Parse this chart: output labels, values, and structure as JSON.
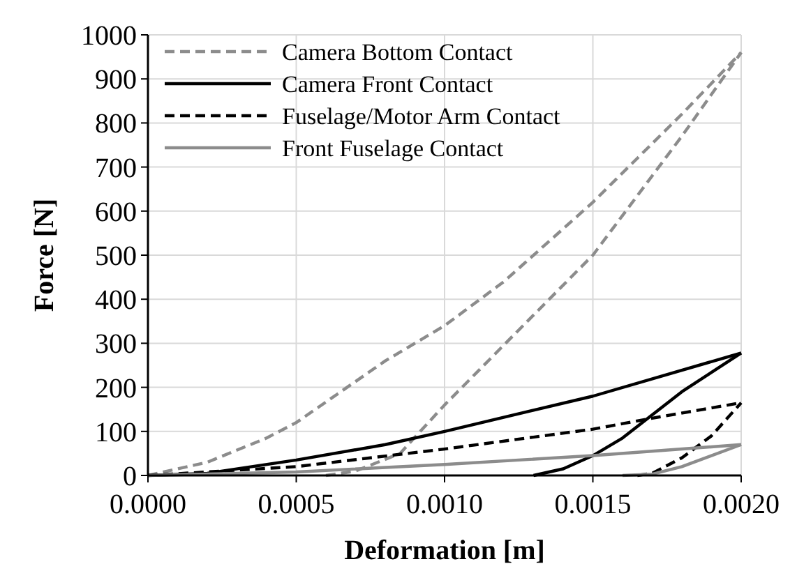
{
  "chart_data": {
    "type": "line",
    "xlabel": "Deformation [m]",
    "ylabel": "Force [N]",
    "xlim": [
      0,
      0.002
    ],
    "xticks": [
      {
        "value": 0,
        "label": "0.0000"
      },
      {
        "value": 0.0005,
        "label": "0.0005"
      },
      {
        "value": 0.001,
        "label": "0.0010"
      },
      {
        "value": 0.0015,
        "label": "0.0015"
      },
      {
        "value": 0.002,
        "label": "0.0020"
      }
    ],
    "ylim": [
      0,
      1000
    ],
    "yticks": [
      0,
      100,
      200,
      300,
      400,
      500,
      600,
      700,
      800,
      900,
      1000
    ],
    "grid": true,
    "legend": "top left",
    "marker": "none",
    "series": [
      {
        "name": "Camera Bottom Contact",
        "color": "#8c8c8c",
        "line_style": "dashed",
        "x": [
          0,
          0.0002,
          0.0004,
          0.0005,
          0.0008,
          0.001,
          0.0012,
          0.0015,
          0.0018,
          0.002
        ],
        "values": [
          0,
          30,
          85,
          120,
          260,
          340,
          440,
          620,
          820,
          960
        ]
      },
      {
        "color": "#8c8c8c",
        "line_style": "dashed",
        "x": [
          0.0006,
          0.0007,
          0.00085,
          0.001,
          0.00125,
          0.0015,
          0.0018,
          0.002
        ],
        "values": [
          0,
          10,
          50,
          160,
          330,
          500,
          770,
          960
        ]
      },
      {
        "name": "Camera Front Contact",
        "color": "#000000",
        "line_style": "solid",
        "x": [
          0,
          0.0002,
          0.0005,
          0.0008,
          0.001,
          0.0015,
          0.002
        ],
        "values": [
          0,
          5,
          35,
          70,
          100,
          180,
          278
        ]
      },
      {
        "color": "#000000",
        "line_style": "solid",
        "x": [
          0.0013,
          0.0014,
          0.0015,
          0.0016,
          0.0018,
          0.002
        ],
        "values": [
          0,
          15,
          45,
          85,
          190,
          278
        ]
      },
      {
        "name": "Fuselage/Motor Arm Contact",
        "color": "#000000",
        "line_style": "dashed",
        "x": [
          0,
          0.0005,
          0.001,
          0.0015,
          0.0017,
          0.002
        ],
        "values": [
          0,
          20,
          60,
          105,
          130,
          165
        ]
      },
      {
        "color": "#000000",
        "line_style": "dashed",
        "x": [
          0.00165,
          0.0017,
          0.0018,
          0.0019,
          0.002
        ],
        "values": [
          0,
          5,
          40,
          90,
          165
        ]
      },
      {
        "name": "Front Fuselage Contact",
        "color": "#8c8c8c",
        "line_style": "solid",
        "x": [
          0,
          0.0005,
          0.001,
          0.0015,
          0.002
        ],
        "values": [
          0,
          8,
          25,
          45,
          70
        ]
      },
      {
        "color": "#8c8c8c",
        "line_style": "solid",
        "x": [
          0.0016,
          0.0017,
          0.0018,
          0.002
        ],
        "values": [
          0,
          3,
          20,
          70
        ]
      }
    ]
  }
}
